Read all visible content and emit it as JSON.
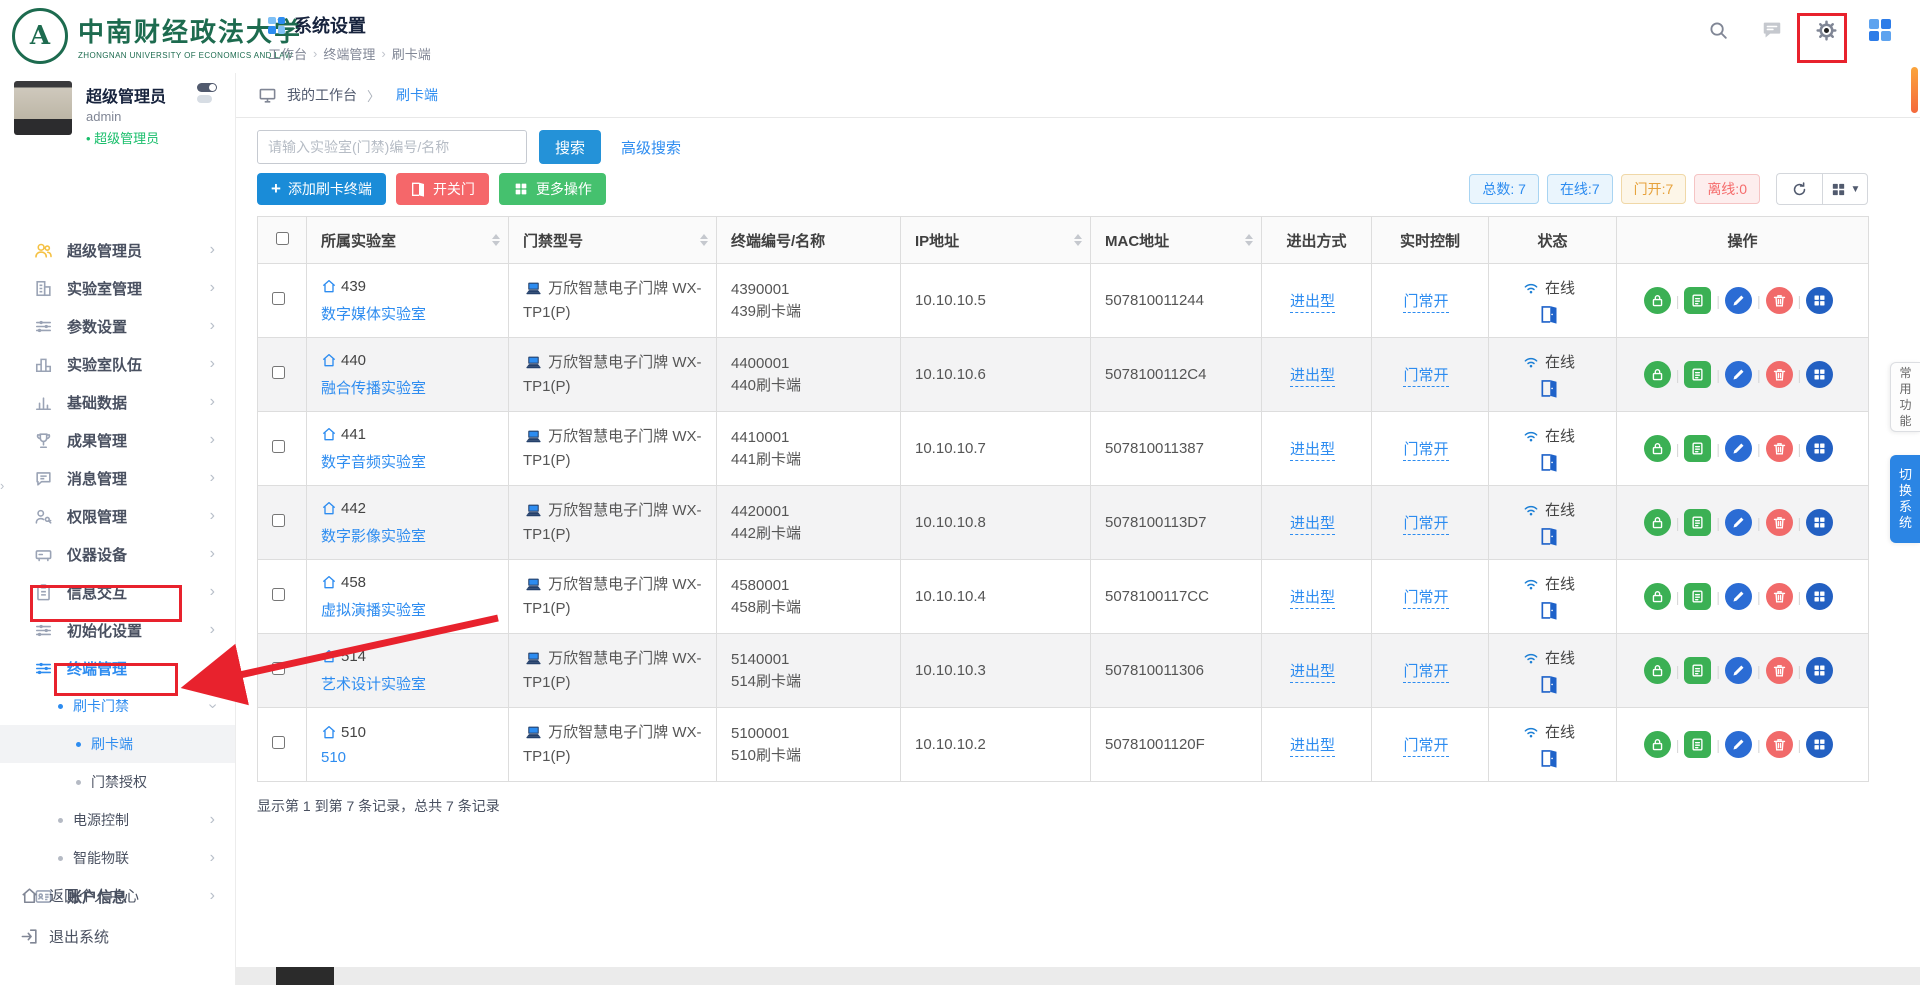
{
  "header": {
    "university_cn": "中南财经政法大学",
    "university_en": "ZHONGNAN UNIVERSITY OF ECONOMICS AND LAW",
    "title": "系统设置",
    "breadcrumb": [
      "工作台",
      "终端管理",
      "刷卡端"
    ],
    "icons": [
      {
        "name": "search-icon"
      },
      {
        "name": "message-icon"
      },
      {
        "name": "gear-icon",
        "annotated": true
      },
      {
        "name": "apps-icon"
      }
    ]
  },
  "tab_bar": {
    "home": "我的工作台",
    "current": "刷卡端"
  },
  "sidebar": {
    "user": {
      "name": "超级管理员",
      "account": "admin",
      "role": "超级管理员"
    },
    "items": [
      {
        "label": "超级管理员",
        "icon": "users-icon",
        "iconColor": "#f5c143",
        "chevron": "right",
        "level": 1
      },
      {
        "label": "实验室管理",
        "icon": "building-icon",
        "chevron": "right",
        "level": 1
      },
      {
        "label": "参数设置",
        "icon": "sliders-icon",
        "chevron": "right",
        "level": 1
      },
      {
        "label": "实验室队伍",
        "icon": "podium-icon",
        "chevron": "right",
        "level": 1
      },
      {
        "label": "基础数据",
        "icon": "chart-icon",
        "chevron": "right",
        "level": 1
      },
      {
        "label": "成果管理",
        "icon": "trophy-icon",
        "chevron": "right",
        "level": 1
      },
      {
        "label": "消息管理",
        "icon": "chat-icon",
        "chevron": "right",
        "level": 1
      },
      {
        "label": "权限管理",
        "icon": "permission-icon",
        "chevron": "right",
        "level": 1
      },
      {
        "label": "仪器设备",
        "icon": "device-icon",
        "chevron": "right",
        "level": 1
      },
      {
        "label": "信息交互",
        "icon": "clipboard-icon",
        "chevron": "right",
        "level": 1
      },
      {
        "label": "初始化设置",
        "icon": "sliders-icon",
        "chevron": "right",
        "level": 1
      },
      {
        "label": "终端管理",
        "icon": "sliders-icon",
        "chevron": "down",
        "level": 1,
        "active": true
      },
      {
        "label": "刷卡门禁",
        "chevron": "down",
        "level": 2,
        "active": true,
        "bullet": true
      },
      {
        "label": "刷卡端",
        "level": 3,
        "active": true,
        "bullet": true,
        "selected": true
      },
      {
        "label": "门禁授权",
        "level": 3,
        "bullet": true
      },
      {
        "label": "电源控制",
        "chevron": "right",
        "level": 2,
        "bullet": true
      },
      {
        "label": "智能物联",
        "chevron": "right",
        "level": 2,
        "bullet": true
      },
      {
        "label": "账户信息",
        "icon": "idcard-icon",
        "chevron": "right",
        "level": 1
      }
    ],
    "footer": [
      {
        "label": "返回个人中心",
        "icon": "home-icon"
      },
      {
        "label": "退出系统",
        "icon": "logout-icon"
      }
    ]
  },
  "toolbar": {
    "search_placeholder": "请输入实验室(门禁)编号/名称",
    "search_button": "搜索",
    "advanced_search": "高级搜索",
    "add_button": "添加刷卡终端",
    "door_button": "开关门",
    "more_button": "更多操作",
    "stats": [
      {
        "label": "总数: 7",
        "style": "blue"
      },
      {
        "label": "在线:7",
        "style": "blue"
      },
      {
        "label": "门开:7",
        "style": "orange"
      },
      {
        "label": "离线:0",
        "style": "red"
      }
    ],
    "view_buttons": [
      {
        "name": "refresh-icon"
      },
      {
        "name": "columns-icon"
      }
    ]
  },
  "table": {
    "columns": [
      {
        "label": "所属实验室",
        "sortable": true
      },
      {
        "label": "门禁型号",
        "sortable": true
      },
      {
        "label": "终端编号/名称",
        "sortable": false
      },
      {
        "label": "IP地址",
        "sortable": true
      },
      {
        "label": "MAC地址",
        "sortable": true
      },
      {
        "label": "进出方式",
        "sortable": false,
        "center": true
      },
      {
        "label": "实时控制",
        "sortable": false,
        "center": true
      },
      {
        "label": "状态",
        "sortable": false,
        "center": true
      },
      {
        "label": "操作",
        "sortable": false,
        "center": true
      }
    ],
    "rows": [
      {
        "room": "439",
        "lab": "数字媒体实验室",
        "model": "万欣智慧电子门牌 WX-TP1(P)",
        "code": "4390001",
        "name": "439刷卡端",
        "ip": "10.10.10.5",
        "mac": "507810011244",
        "access": "进出型",
        "control": "门常开",
        "status": "在线"
      },
      {
        "room": "440",
        "lab": "融合传播实验室",
        "model": "万欣智慧电子门牌 WX-TP1(P)",
        "code": "4400001",
        "name": "440刷卡端",
        "ip": "10.10.10.6",
        "mac": "5078100112C4",
        "access": "进出型",
        "control": "门常开",
        "status": "在线"
      },
      {
        "room": "441",
        "lab": "数字音频实验室",
        "model": "万欣智慧电子门牌 WX-TP1(P)",
        "code": "4410001",
        "name": "441刷卡端",
        "ip": "10.10.10.7",
        "mac": "507810011387",
        "access": "进出型",
        "control": "门常开",
        "status": "在线"
      },
      {
        "room": "442",
        "lab": "数字影像实验室",
        "model": "万欣智慧电子门牌 WX-TP1(P)",
        "code": "4420001",
        "name": "442刷卡端",
        "ip": "10.10.10.8",
        "mac": "5078100113D7",
        "access": "进出型",
        "control": "门常开",
        "status": "在线"
      },
      {
        "room": "458",
        "lab": "虚拟演播实验室",
        "model": "万欣智慧电子门牌 WX-TP1(P)",
        "code": "4580001",
        "name": "458刷卡端",
        "ip": "10.10.10.4",
        "mac": "5078100117CC",
        "access": "进出型",
        "control": "门常开",
        "status": "在线"
      },
      {
        "room": "514",
        "lab": "艺术设计实验室",
        "model": "万欣智慧电子门牌 WX-TP1(P)",
        "code": "5140001",
        "name": "514刷卡端",
        "ip": "10.10.10.3",
        "mac": "507810011306",
        "access": "进出型",
        "control": "门常开",
        "status": "在线"
      },
      {
        "room": "510",
        "lab": "510",
        "model": "万欣智慧电子门牌 WX-TP1(P)",
        "code": "5100001",
        "name": "510刷卡端",
        "ip": "10.10.10.2",
        "mac": "50781001120F",
        "access": "进出型",
        "control": "门常开",
        "status": "在线"
      }
    ],
    "row_actions": [
      {
        "name": "lock-icon",
        "color": "#3bb054",
        "shape": "circle"
      },
      {
        "name": "edit-doc-icon",
        "color": "#3bb054",
        "shape": "square"
      },
      {
        "name": "pencil-icon",
        "color": "#2b6cd4",
        "shape": "circle"
      },
      {
        "name": "trash-icon",
        "color": "#f16a6a",
        "shape": "circle"
      },
      {
        "name": "more-icon",
        "color": "#2360c2",
        "shape": "circle"
      }
    ],
    "summary": "显示第 1 到第 7 条记录，总共 7 条记录"
  },
  "side_tabs": [
    {
      "label": "常用功能",
      "style": "light"
    },
    {
      "label": "切换系统",
      "style": "primary"
    }
  ],
  "annotations": {
    "color": "#e8222d",
    "targets": [
      "gear-icon",
      "终端管理",
      "刷卡端"
    ]
  }
}
